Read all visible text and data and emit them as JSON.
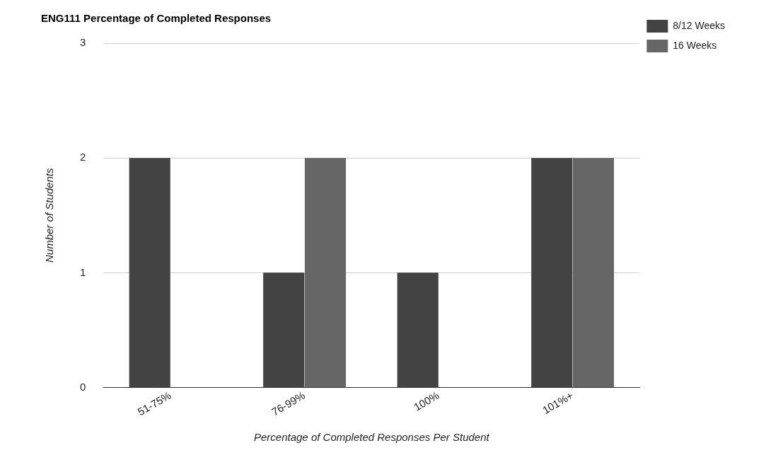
{
  "chart_data": {
    "type": "bar",
    "title": "ENG111 Percentage of Completed Responses",
    "xlabel": "Percentage of Completed Responses Per Student",
    "ylabel": "Number of Students",
    "categories": [
      "51-75%",
      "76-99%",
      "100%",
      "101%+"
    ],
    "series": [
      {
        "name": "8/12 Weeks",
        "color": "#434343",
        "values": [
          2,
          1,
          1,
          2
        ]
      },
      {
        "name": "16 Weeks",
        "color": "#666666",
        "values": [
          0,
          2,
          0,
          2
        ]
      }
    ],
    "ylim": [
      0,
      3
    ],
    "yticks": [
      0,
      1,
      2,
      3
    ],
    "grid": "y",
    "legend": "top right"
  }
}
